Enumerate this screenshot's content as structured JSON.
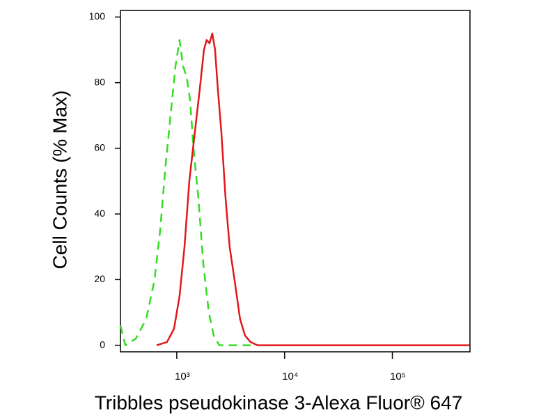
{
  "chart_data": {
    "type": "line",
    "xlabel": "Tribbles pseudokinase 3-Alexa Fluor® 647",
    "ylabel": "Cell Counts (% Max)",
    "xscale": "log",
    "xlim": [
      300,
      525000
    ],
    "xticks": [
      {
        "value": 1000,
        "label": "10³"
      },
      {
        "value": 10000,
        "label": "10⁴"
      },
      {
        "value": 100000,
        "label": "10⁵"
      }
    ],
    "ylim": [
      -2,
      102
    ],
    "yticks": [
      0,
      20,
      40,
      60,
      80,
      100
    ],
    "series": [
      {
        "color": "#e0191b",
        "dash": "solid",
        "x": [
          650,
          812,
          942,
          1061,
          1178,
          1307,
          1471,
          1633,
          1786,
          1893,
          2010,
          2133,
          2264,
          2403,
          2588,
          2831,
          3092,
          3430,
          3864,
          4288,
          4830,
          5600,
          520000
        ],
        "values": [
          0,
          1,
          5,
          15,
          30,
          50,
          65,
          78,
          90,
          93,
          92,
          95,
          90,
          78,
          65,
          45,
          30,
          20,
          8,
          3,
          1,
          0,
          0
        ]
      },
      {
        "color": "#33dd22",
        "dash": "dashed",
        "x": [
          300,
          333,
          416,
          520,
          622,
          700,
          788,
          875,
          971,
          1061,
          1143,
          1231,
          1326,
          1429,
          1585,
          1759,
          1981,
          2198,
          2475,
          4830
        ],
        "values": [
          6,
          0,
          2,
          8,
          20,
          35,
          55,
          70,
          85,
          93,
          85,
          82,
          75,
          60,
          45,
          25,
          10,
          3,
          0,
          0
        ]
      }
    ]
  }
}
